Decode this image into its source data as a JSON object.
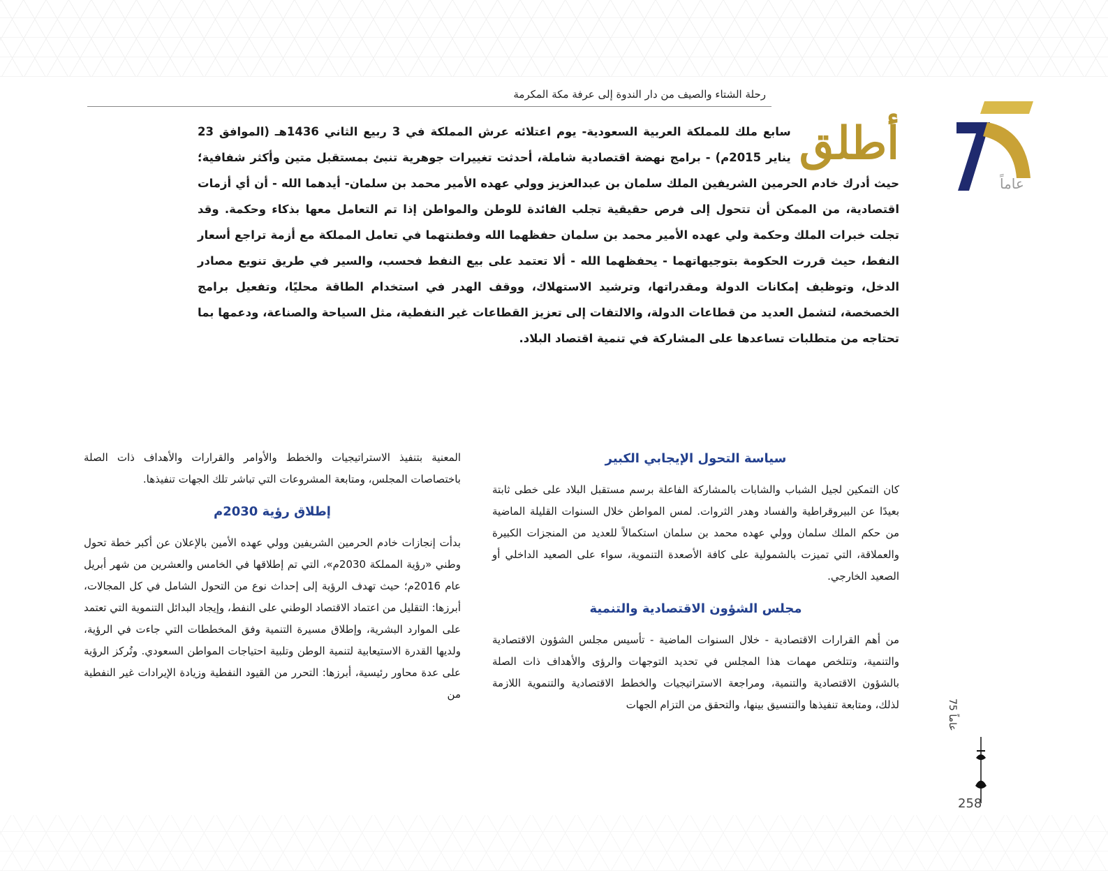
{
  "header": {
    "title": "رحلة الشتاء والصيف من دار الندوة إلى عرفة مكة المكرمة"
  },
  "logo": {
    "number": "75",
    "label": "عاماً",
    "colors": {
      "blue": "#1f2a6e",
      "gold": "#c9a236"
    }
  },
  "intro": {
    "dropcap": "أطلق",
    "text": " سابع ملك للمملكة العربية السعودية- يوم اعتلائه عرش المملكة في 3 ربيع الثاني 1436هـ (الموافق 23 يناير 2015م) - برامج نهضة اقتصادية شاملة، أحدثت تغييرات جوهرية تنبئ بمستقبل متين وأكثر شفافية؛ حيث أدرك خادم الحرمين الشريفين الملك سلمان بن عبدالعزيز وولي عهده الأمير محمد بن سلمان- أيدهما الله - أن أي أزمات اقتصادية، من الممكن أن تتحول إلى فرص حقيقية تجلب الفائدة للوطن والمواطن إذا تم التعامل معها بذكاء وحكمة. وقد تجلت خبرات الملك وحكمة ولي عهده الأمير محمد بن سلمان حفظهما الله وفطنتهما في تعامل المملكة مع أزمة تراجع أسعار النفط، حيث قررت الحكومة بتوجيهاتهما - يحفظهما الله - ألا تعتمد على بيع النفط فحسب، والسير في طريق تنويع مصادر الدخل، وتوظيف إمكانات الدولة ومقدراتها، وترشيد الاستهلاك، ووقف الهدر في استخدام الطاقة محليًا، وتفعيل برامج الخصخصة، لتشمل العديد من قطاعات الدولة، والالتفات إلى تعزيز القطاعات غير النفطية، مثل السياحة والصناعة، ودعمها بما تحتاجه من متطلبات تساعدها على المشاركة في تنمية اقتصاد البلاد."
  },
  "right_column": {
    "h1": "سياسة التحول الإيجابي الكبير",
    "p1": "كان التمكين لجيل الشباب والشابات بالمشاركة الفاعلة برسم مستقبل البلاد على خطى ثابتة بعيدًا عن البيروقراطية والفساد وهدر الثروات. لمس المواطن خلال السنوات القليلة الماضية من حكم الملك سلمان وولي عهده محمد بن سلمان استكمالاً للعديد من المنجزات الكبيرة والعملاقة، التي تميزت بالشمولية على كافة الأصعدة التنموية، سواء على الصعيد الداخلي أو الصعيد الخارجي.",
    "h2": "مجلس الشؤون الاقتصادية والتنمية",
    "p2": "من أهم القرارات الاقتصادية - خلال السنوات الماضية - تأسيس مجلس الشؤون الاقتصادية والتنمية، وتتلخص مهمات هذا المجلس في تحديد التوجهات والرؤى والأهداف ذات الصلة بالشؤون الاقتصادية والتنمية، ومراجعة الاستراتيجيات والخطط الاقتصادية والتنموية اللازمة لذلك، ومتابعة تنفيذها والتنسيق بينها، والتحقق من التزام الجهات"
  },
  "left_column": {
    "p0": "المعنية بتنفيذ الاستراتيجيات والخطط والأوامر والقرارات والأهداف ذات الصلة باختصاصات المجلس، ومتابعة المشروعات التي تباشر تلك الجهات تنفيذها.",
    "h1": "إطلاق رؤية 2030م",
    "p1": "بدأت إنجازات خادم الحرمين الشريفين وولي عهده الأمين بالإعلان عن أكبر خطة تحول وطني «رؤية المملكة 2030م»، التي تم إطلاقها في الخامس والعشرين من شهر أبريل عام 2016م؛ حيث تهدف الرؤية إلى إحداث نوع من التحول الشامل في كل المجالات، أبرزها: التقليل من اعتماد الاقتصاد الوطني على النفط، وإيجاد البدائل التنموية التي تعتمد على الموارد البشرية، وإطلاق مسيرة التنمية وفق المخططات التي جاءت في الرؤية، ولديها القدرة الاستيعابية لتنمية الوطن وتلبية احتياجات المواطن السعودي. وتُركز الرؤية على عدة محاور رئيسية، أبرزها: التحرر من القيود النفطية وزيادة الإيرادات غير النفطية من"
  },
  "footer": {
    "side_label": "75 عاماً",
    "page_number": "258"
  }
}
